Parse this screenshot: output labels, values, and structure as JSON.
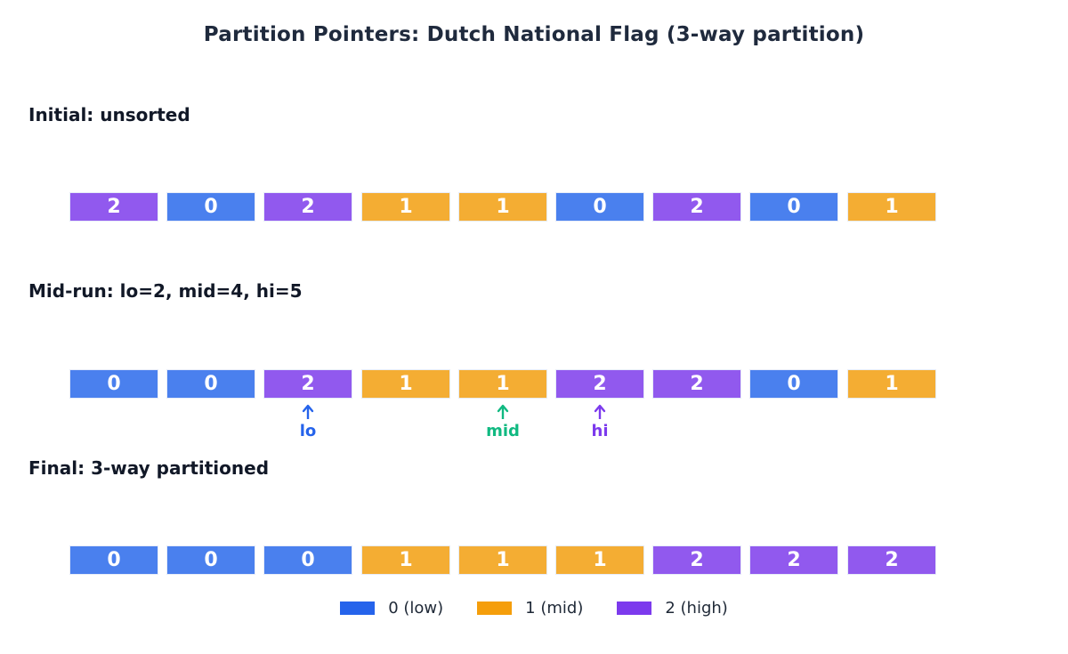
{
  "title": "Partition Pointers: Dutch National Flag (3-way partition)",
  "colors": {
    "value_0": "#4a80ee",
    "value_1": "#f4ad33",
    "value_2": "#9159ee",
    "lo": "#2563eb",
    "mid": "#10b981",
    "hi": "#7c3aed",
    "legend_0": "#2563eb",
    "legend_1": "#f59e0b",
    "legend_2": "#7c3aed"
  },
  "rows": [
    {
      "label": "Initial: unsorted",
      "values": [
        2,
        0,
        2,
        1,
        1,
        0,
        2,
        0,
        1
      ]
    },
    {
      "label": "Mid-run: lo=2, mid=4, hi=5",
      "values": [
        0,
        0,
        2,
        1,
        1,
        2,
        2,
        0,
        1
      ]
    },
    {
      "label": "Final: 3-way partitioned",
      "values": [
        0,
        0,
        0,
        1,
        1,
        1,
        2,
        2,
        2
      ]
    }
  ],
  "pointers": [
    {
      "label": "lo",
      "index": 2,
      "color": "#2563eb"
    },
    {
      "label": "mid",
      "index": 4,
      "color": "#10b981"
    },
    {
      "label": "hi",
      "index": 5,
      "color": "#7c3aed"
    }
  ],
  "legend": [
    {
      "label": "0 (low)",
      "color": "#2563eb"
    },
    {
      "label": "1 (mid)",
      "color": "#f59e0b"
    },
    {
      "label": "2 (high)",
      "color": "#7c3aed"
    }
  ]
}
